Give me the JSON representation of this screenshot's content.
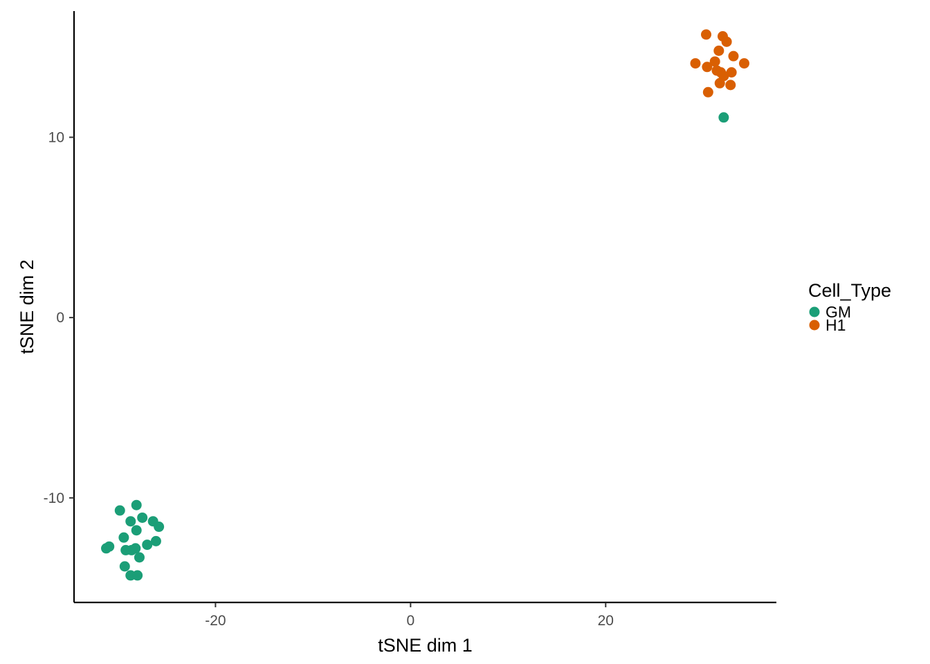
{
  "chart_data": {
    "type": "scatter",
    "title": "",
    "xlabel": "tSNE dim 1",
    "ylabel": "tSNE dim 2",
    "xlim": [
      -34.5,
      37.5
    ],
    "ylim": [
      -15.8,
      17
    ],
    "x_ticks": [
      -20,
      0,
      20
    ],
    "y_ticks": [
      -10,
      0,
      10
    ],
    "grid": false,
    "legend": {
      "title": "Cell_Type",
      "placement": "right"
    },
    "series": [
      {
        "name": "GM",
        "color": "#1b9e77",
        "points": [
          [
            -28.1,
            -10.4
          ],
          [
            -29.8,
            -10.7
          ],
          [
            -27.5,
            -11.1
          ],
          [
            -26.4,
            -11.3
          ],
          [
            -28.7,
            -11.3
          ],
          [
            -25.8,
            -11.6
          ],
          [
            -28.1,
            -11.8
          ],
          [
            -29.4,
            -12.2
          ],
          [
            -26.1,
            -12.4
          ],
          [
            -27.0,
            -12.6
          ],
          [
            -31.2,
            -12.8
          ],
          [
            -30.9,
            -12.7
          ],
          [
            -29.2,
            -12.9
          ],
          [
            -28.6,
            -12.9
          ],
          [
            -28.2,
            -12.8
          ],
          [
            -27.8,
            -13.3
          ],
          [
            -29.3,
            -13.8
          ],
          [
            -28.7,
            -14.3
          ],
          [
            -28.0,
            -14.3
          ],
          [
            32.1,
            11.1
          ]
        ]
      },
      {
        "name": "H1",
        "color": "#d95f02",
        "points": [
          [
            30.3,
            15.7
          ],
          [
            32.0,
            15.6
          ],
          [
            32.4,
            15.3
          ],
          [
            31.6,
            14.8
          ],
          [
            33.1,
            14.5
          ],
          [
            31.2,
            14.2
          ],
          [
            29.2,
            14.1
          ],
          [
            34.2,
            14.1
          ],
          [
            30.4,
            13.9
          ],
          [
            31.4,
            13.7
          ],
          [
            31.8,
            13.6
          ],
          [
            32.9,
            13.6
          ],
          [
            32.1,
            13.4
          ],
          [
            31.7,
            13.0
          ],
          [
            32.8,
            12.9
          ],
          [
            30.5,
            12.5
          ]
        ]
      }
    ]
  }
}
